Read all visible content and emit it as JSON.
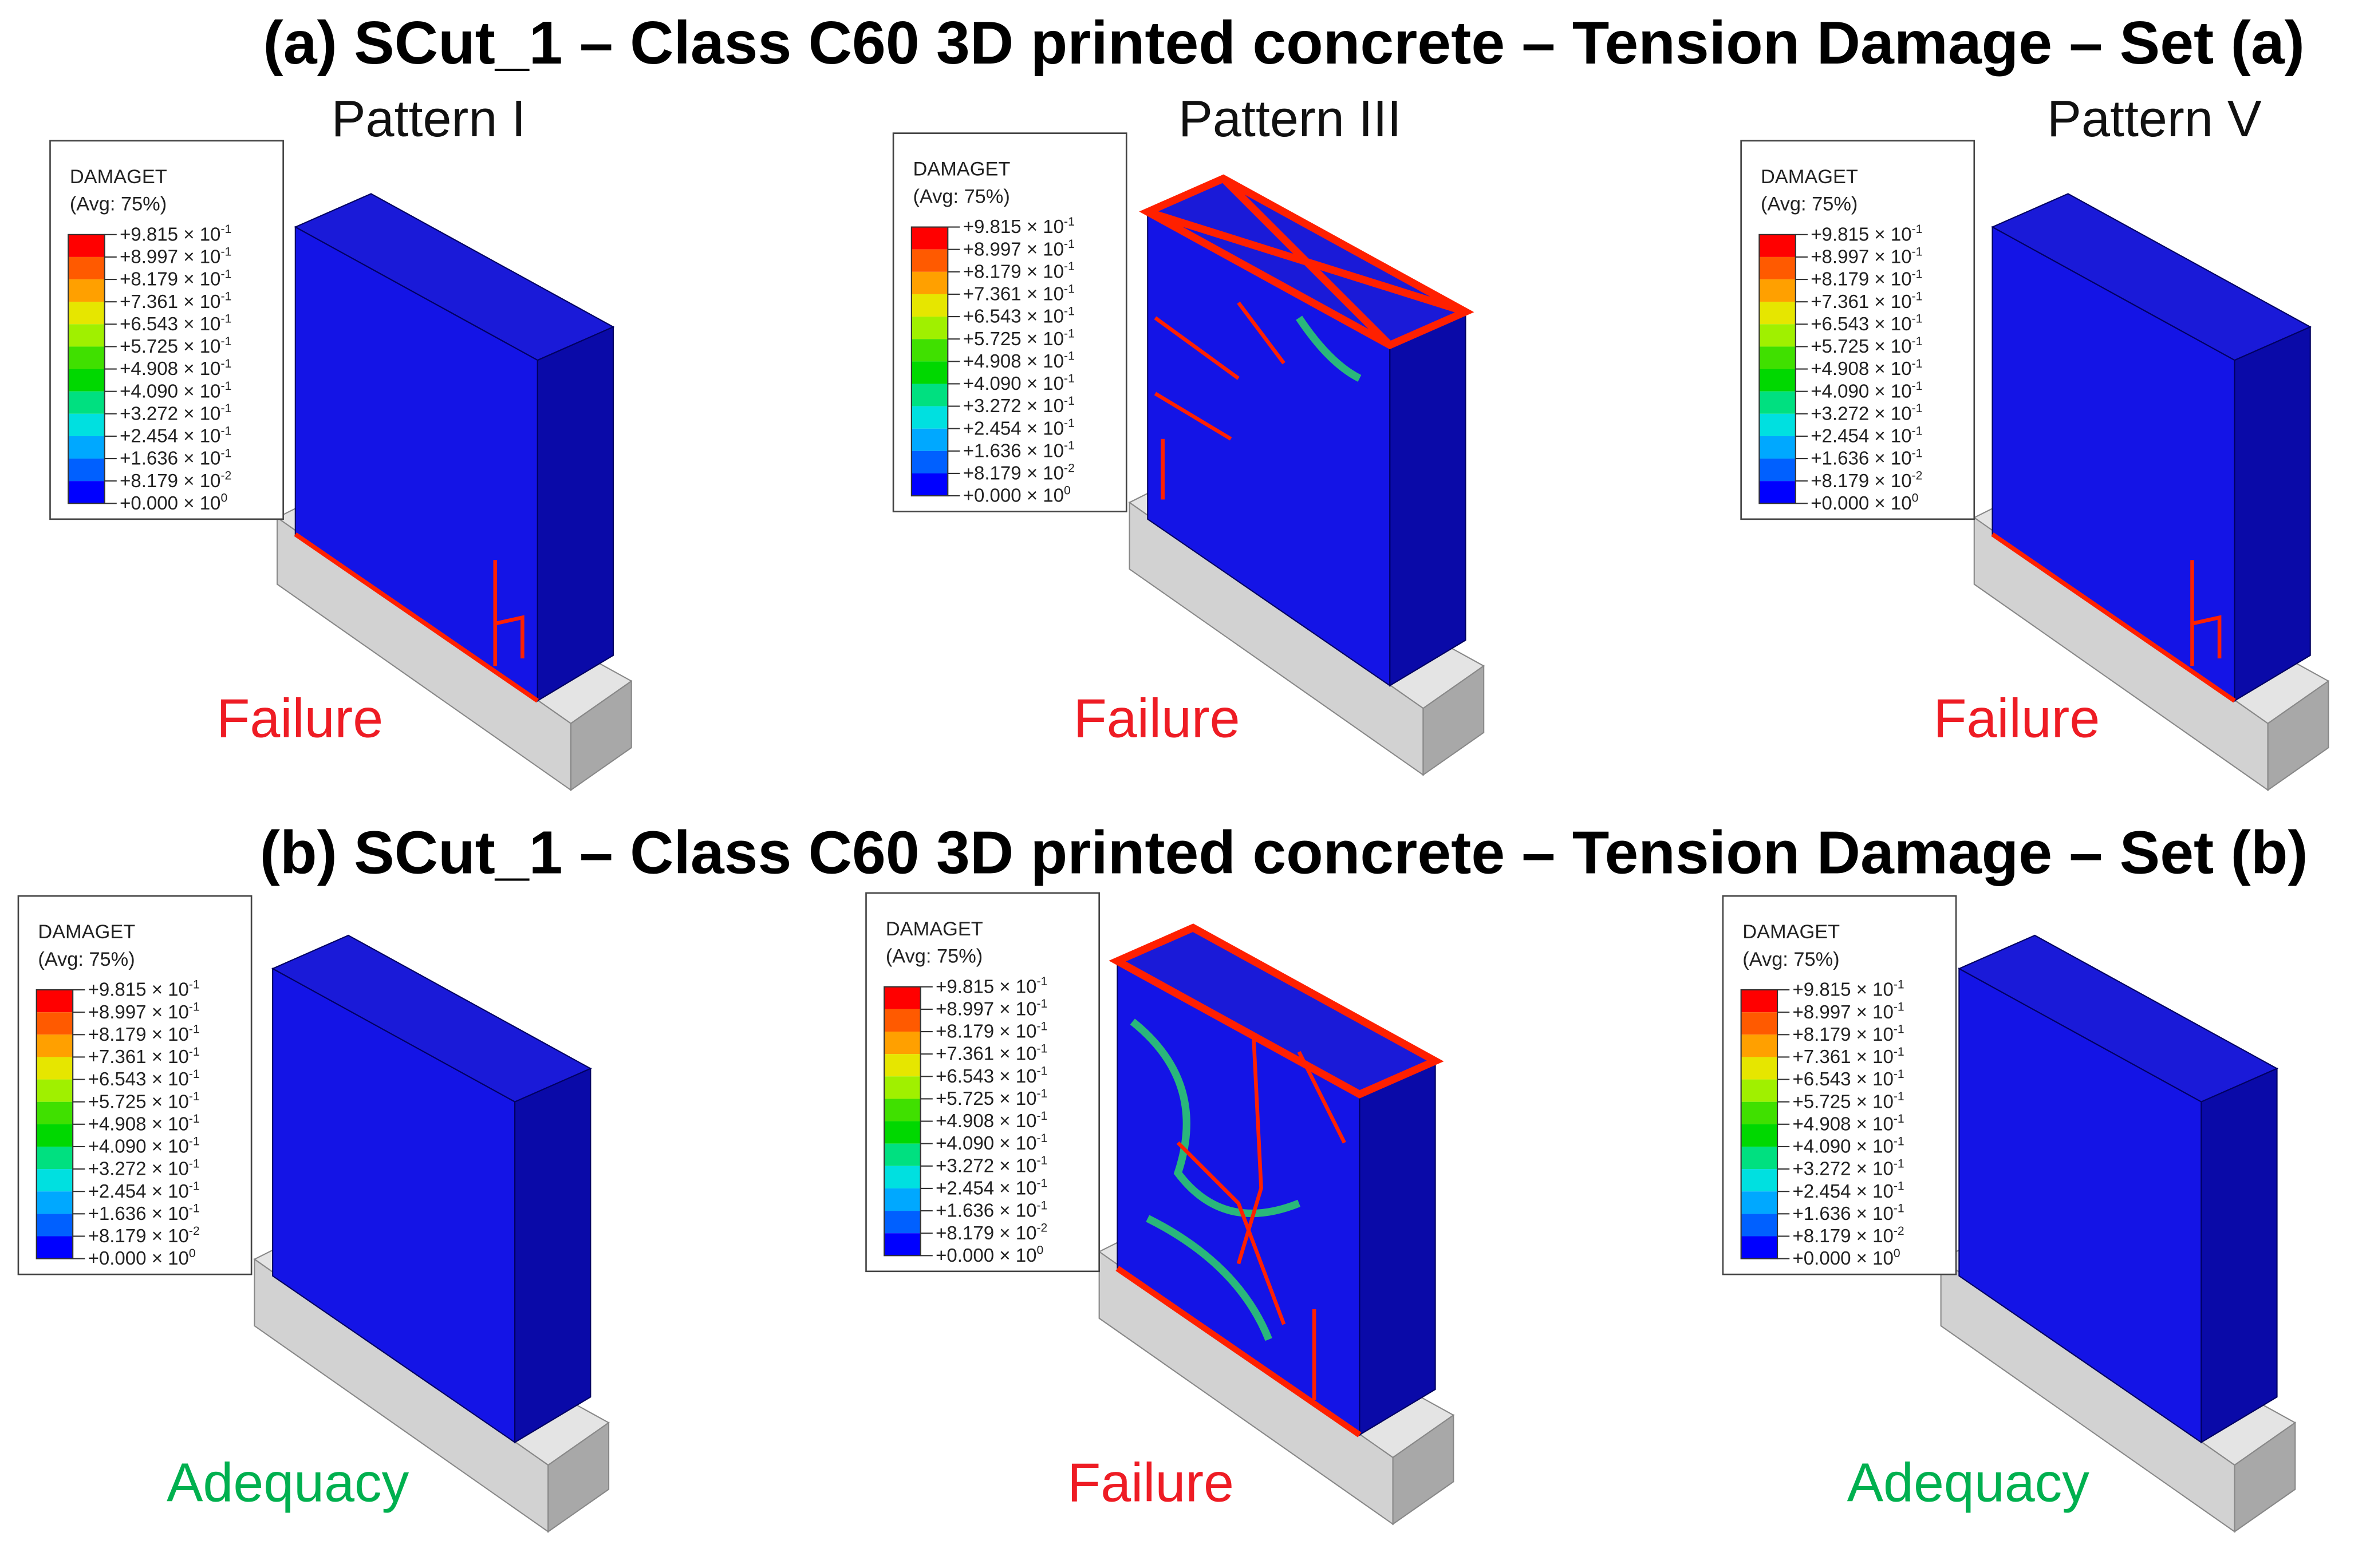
{
  "panels": [
    {
      "title": "(a) SCut_1 – Class C60 3D printed concrete – Tension Damage – Set (a)",
      "items": [
        {
          "pattern": "Pattern I",
          "verdict": "Failure",
          "verdict_color": "#ee1c24"
        },
        {
          "pattern": "Pattern III",
          "verdict": "Failure",
          "verdict_color": "#ee1c24"
        },
        {
          "pattern": "Pattern V",
          "verdict": "Failure",
          "verdict_color": "#ee1c24"
        }
      ]
    },
    {
      "title": "(b) SCut_1 – Class C60 3D printed concrete – Tension Damage – Set (b)",
      "items": [
        {
          "verdict": "Adequacy",
          "verdict_color": "#00b04f"
        },
        {
          "verdict": "Failure",
          "verdict_color": "#ee1c24"
        },
        {
          "verdict": "Adequacy",
          "verdict_color": "#00b04f"
        }
      ]
    }
  ],
  "legend": {
    "title": "DAMAGET",
    "subtitle": "(Avg: 75%)",
    "entries": [
      {
        "mantissa": "+9.815 × 10",
        "exponent": "-1"
      },
      {
        "mantissa": "+8.997 × 10",
        "exponent": "-1"
      },
      {
        "mantissa": "+8.179 × 10",
        "exponent": "-1"
      },
      {
        "mantissa": "+7.361 × 10",
        "exponent": "-1"
      },
      {
        "mantissa": "+6.543 × 10",
        "exponent": "-1"
      },
      {
        "mantissa": "+5.725 × 10",
        "exponent": "-1"
      },
      {
        "mantissa": "+4.908 × 10",
        "exponent": "-1"
      },
      {
        "mantissa": "+4.090 × 10",
        "exponent": "-1"
      },
      {
        "mantissa": "+3.272 × 10",
        "exponent": "-1"
      },
      {
        "mantissa": "+2.454 × 10",
        "exponent": "-1"
      },
      {
        "mantissa": "+1.636 × 10",
        "exponent": "-1"
      },
      {
        "mantissa": "+8.179 × 10",
        "exponent": "-2"
      },
      {
        "mantissa": "+0.000 × 10",
        "exponent": "0"
      }
    ]
  }
}
